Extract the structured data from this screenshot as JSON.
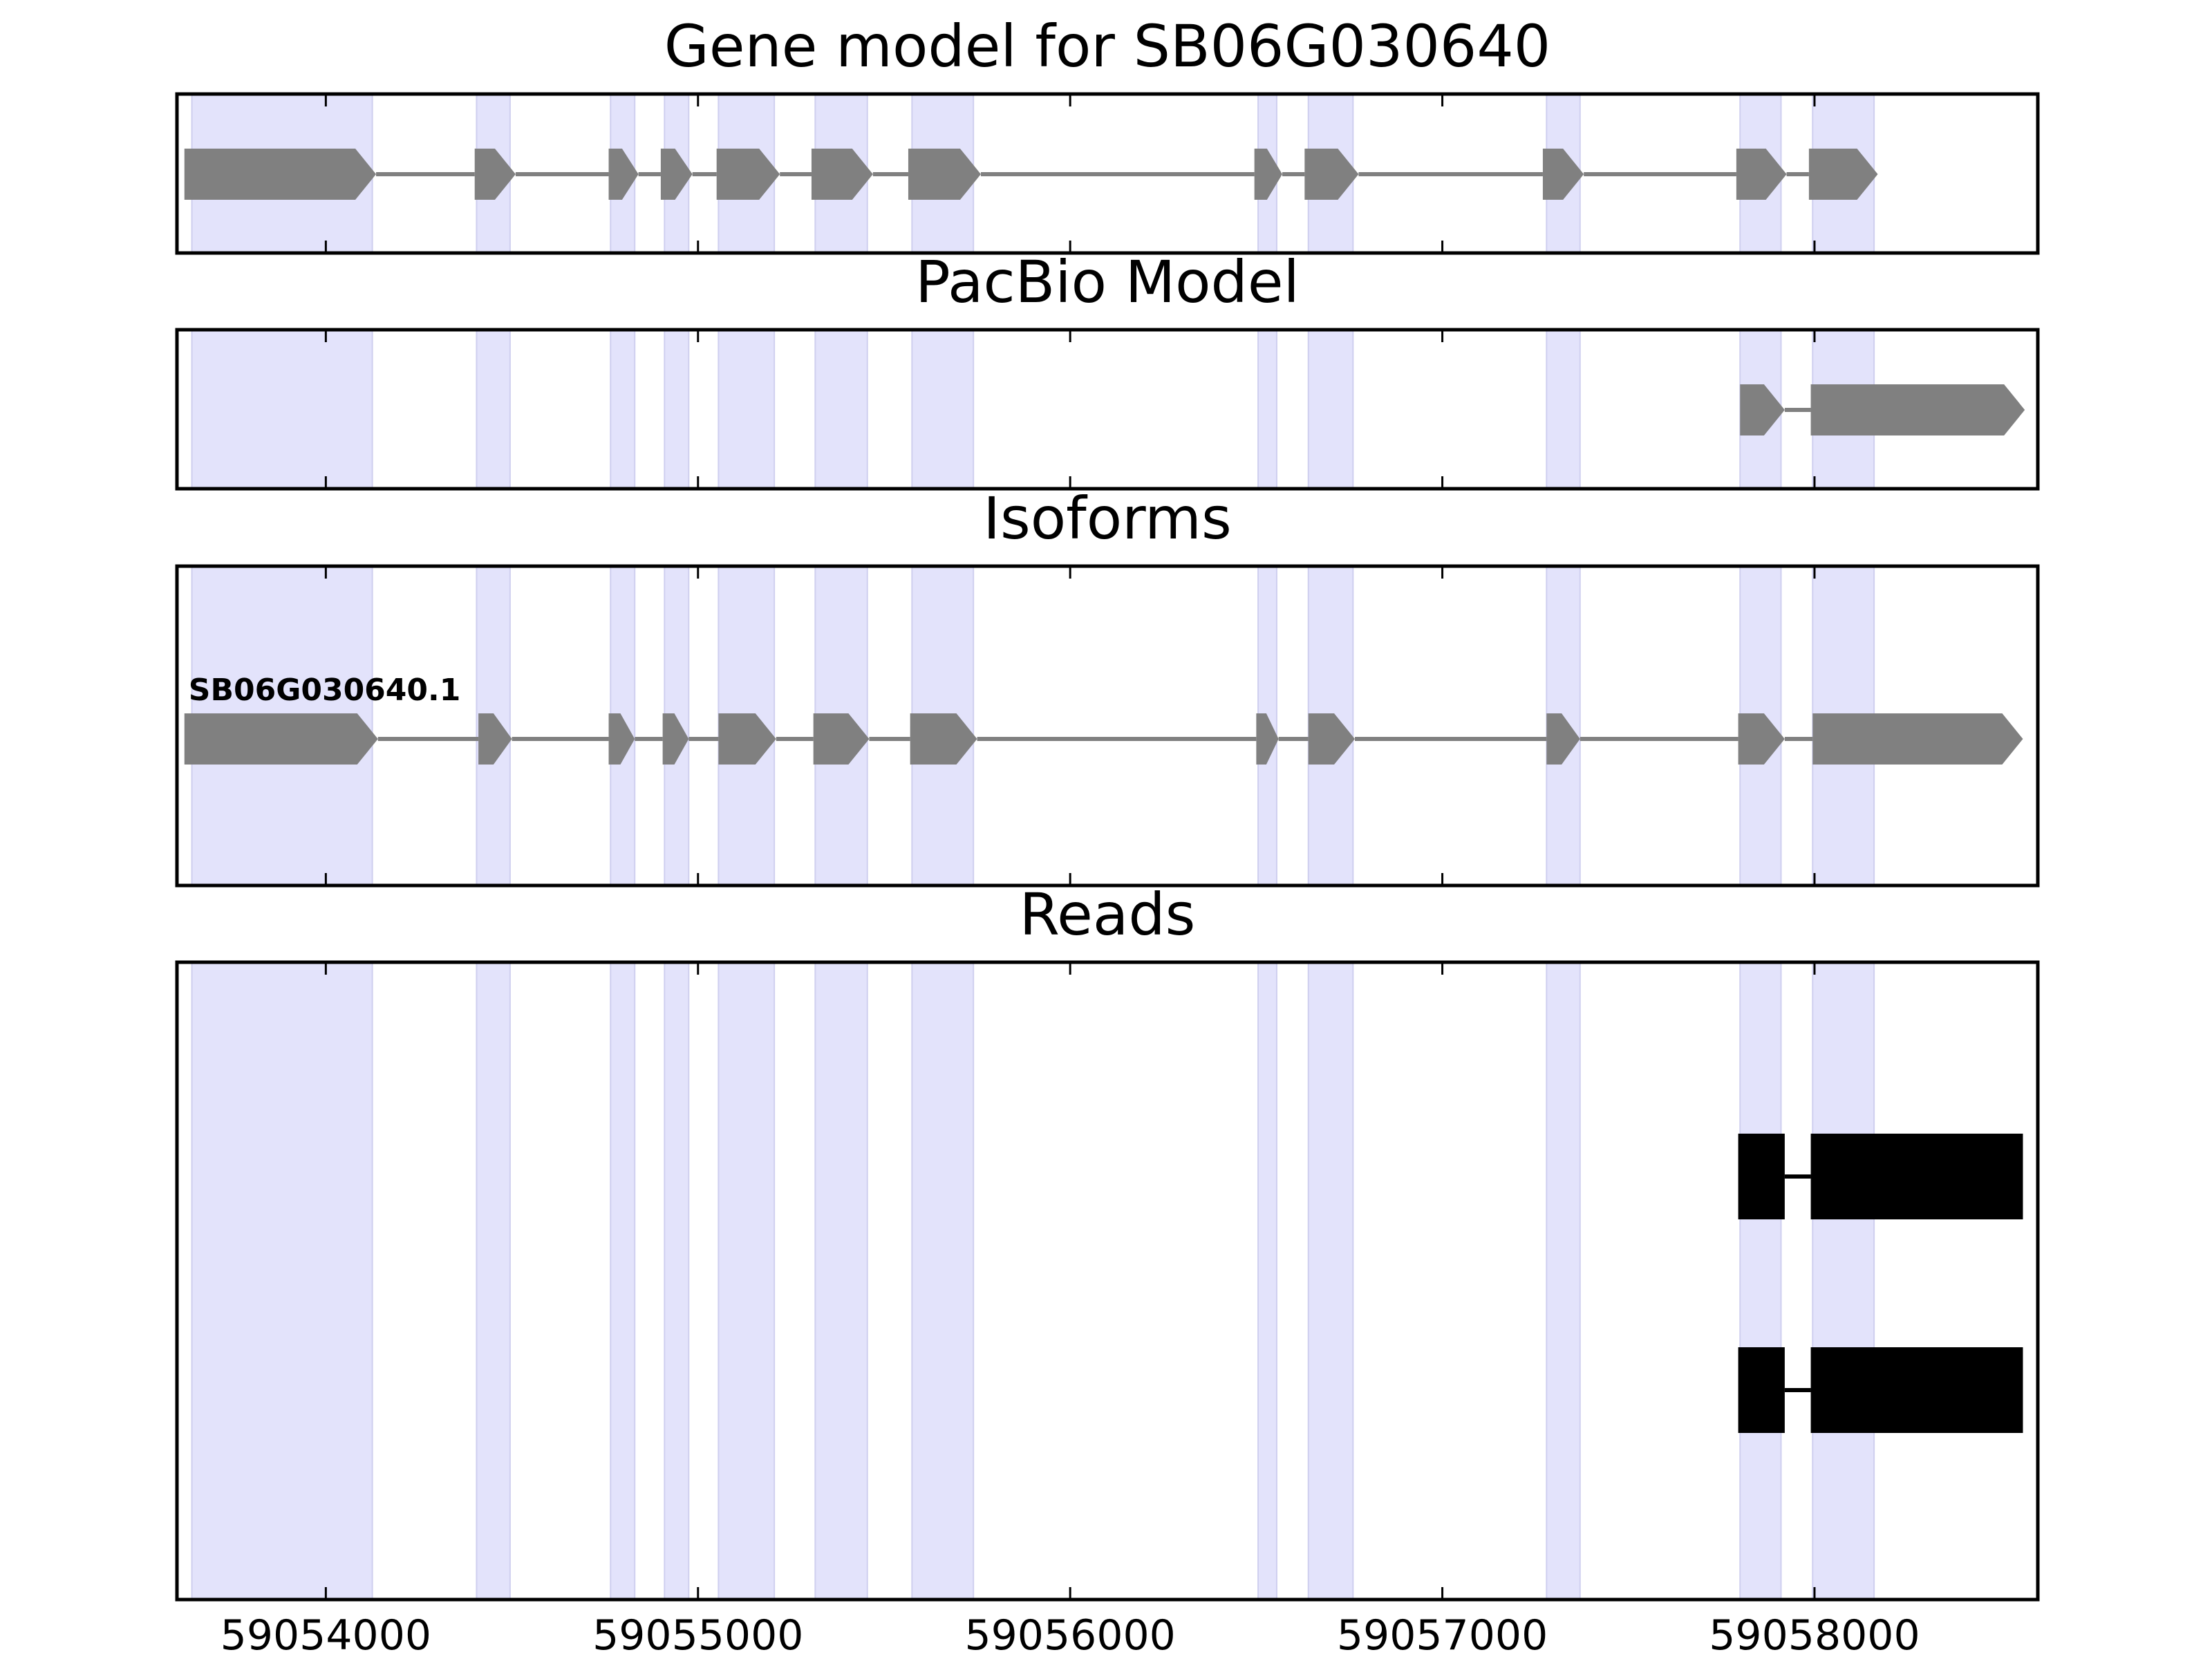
{
  "chart_data": {
    "type": "gene_model_tracks",
    "xlim": [
      59053600,
      59058600
    ],
    "x_ticks": [
      59054000,
      59055000,
      59056000,
      59057000,
      59058000
    ],
    "x_tick_labels": [
      "59054000",
      "59055000",
      "59056000",
      "59057000",
      "59058000"
    ],
    "highlight_color": "#e3e3fb",
    "exon_color": "#808080",
    "intron_color": "#808080",
    "read_color": "#000000",
    "highlight_regions": [
      [
        59053640,
        59054125
      ],
      [
        59054405,
        59054495
      ],
      [
        59054765,
        59054830
      ],
      [
        59054910,
        59054975
      ],
      [
        59055055,
        59055205
      ],
      [
        59055315,
        59055455
      ],
      [
        59055575,
        59055740
      ],
      [
        59056505,
        59056555
      ],
      [
        59056640,
        59056760
      ],
      [
        59057280,
        59057370
      ],
      [
        59057800,
        59057910
      ],
      [
        59057995,
        59058160
      ]
    ],
    "panels": [
      {
        "title": "Gene model for SB06G030640",
        "kind": "gene",
        "strand": "+",
        "exons": [
          [
            59053620,
            59054135
          ],
          [
            59054400,
            59054510
          ],
          [
            59054760,
            59054840
          ],
          [
            59054900,
            59054985
          ],
          [
            59055050,
            59055220
          ],
          [
            59055305,
            59055470
          ],
          [
            59055565,
            59055760
          ],
          [
            59056495,
            59056570
          ],
          [
            59056630,
            59056775
          ],
          [
            59057270,
            59057380
          ],
          [
            59057790,
            59057925
          ],
          [
            59057985,
            59058170
          ]
        ]
      },
      {
        "title": "PacBio Model",
        "kind": "gene",
        "strand": "+",
        "exons": [
          [
            59057800,
            59057920
          ],
          [
            59057990,
            59058565
          ]
        ]
      },
      {
        "title": "Isoforms",
        "kind": "isoforms",
        "isoforms": [
          {
            "name": "SB06G030640.1",
            "strand": "+",
            "exons": [
              [
                59053620,
                59054140
              ],
              [
                59054410,
                59054500
              ],
              [
                59054760,
                59054830
              ],
              [
                59054905,
                59054975
              ],
              [
                59055055,
                59055210
              ],
              [
                59055310,
                59055460
              ],
              [
                59055570,
                59055750
              ],
              [
                59056500,
                59056560
              ],
              [
                59056640,
                59056765
              ],
              [
                59057280,
                59057370
              ],
              [
                59057795,
                59057920
              ],
              [
                59057995,
                59058560
              ]
            ]
          }
        ]
      },
      {
        "title": "Reads",
        "kind": "reads",
        "reads": [
          {
            "exons": [
              [
                59057795,
                59057920
              ],
              [
                59057990,
                59058560
              ]
            ]
          },
          {
            "exons": [
              [
                59057795,
                59057920
              ],
              [
                59057990,
                59058560
              ]
            ]
          }
        ]
      }
    ]
  }
}
